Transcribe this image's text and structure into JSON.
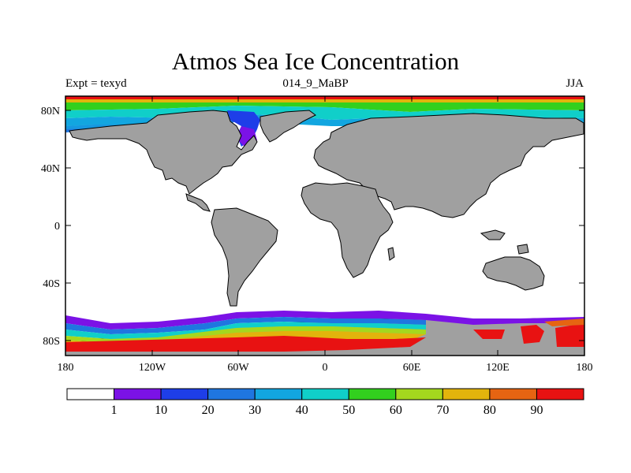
{
  "title": "Atmos Sea Ice Concentration",
  "subtitle_left": "Expt = texyd",
  "subtitle_center": "014_9_MaBP",
  "subtitle_right": "JJA",
  "map": {
    "x_ticks": [
      "180",
      "120W",
      "60W",
      "0",
      "60E",
      "120E",
      "180"
    ],
    "y_ticks": [
      "80N",
      "40N",
      "0",
      "40S",
      "80S"
    ],
    "land_color": "#a0a0a0",
    "ocean_color": "#ffffff"
  },
  "colorbar": {
    "labels": [
      "1",
      "10",
      "20",
      "30",
      "40",
      "50",
      "60",
      "70",
      "80",
      "90"
    ],
    "colors": [
      "#ffffff",
      "#7b12e6",
      "#1e3ee8",
      "#1f76e0",
      "#12a6e0",
      "#10cfc9",
      "#32d01e",
      "#a4d81e",
      "#e2b40c",
      "#e66412",
      "#e81212"
    ]
  }
}
